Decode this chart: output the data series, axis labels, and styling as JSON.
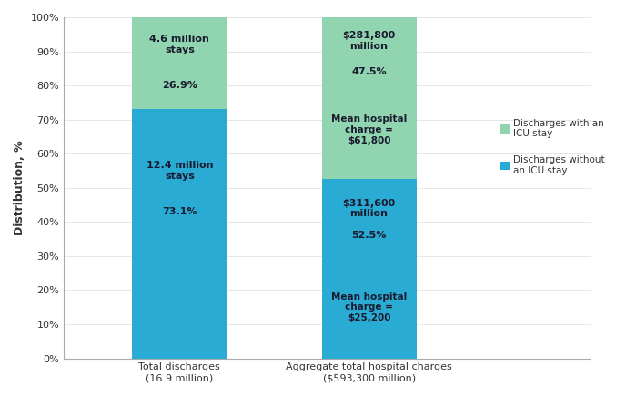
{
  "categories": [
    "Total discharges\n(16.9 million)",
    "Aggregate total hospital charges\n($593,300 million)"
  ],
  "without_icu": [
    73.1,
    52.5
  ],
  "with_icu": [
    26.9,
    47.5
  ],
  "color_without": "#29ABD4",
  "color_with": "#90D5B0",
  "ylabel": "Distribution, %",
  "yticks": [
    0,
    10,
    20,
    30,
    40,
    50,
    60,
    70,
    80,
    90,
    100
  ],
  "ytick_labels": [
    "0%",
    "10%",
    "20%",
    "30%",
    "40%",
    "50%",
    "60%",
    "70%",
    "80%",
    "90%",
    "100%"
  ],
  "legend_with": "Discharges with an\nICU stay",
  "legend_without": "Discharges without\nan ICU stay",
  "text_color": "#1a1a2e",
  "bar_width": 0.18,
  "bar_positions": [
    0.22,
    0.58
  ],
  "xlim": [
    0.0,
    1.0
  ]
}
